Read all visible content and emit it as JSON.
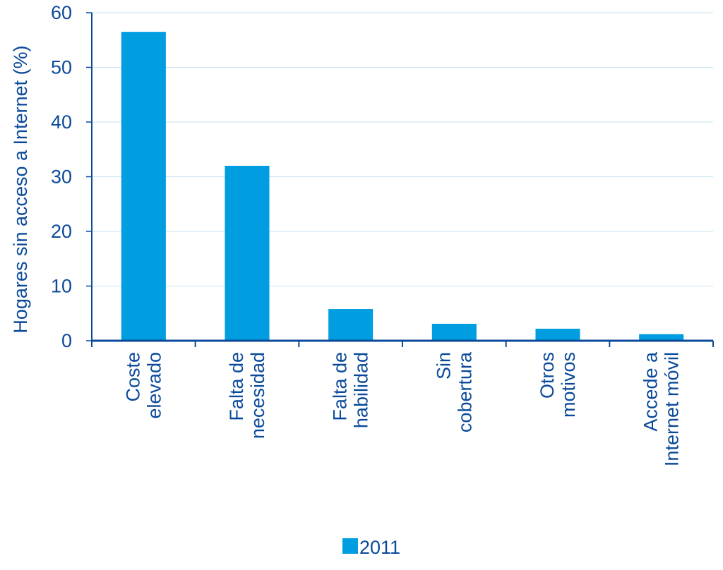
{
  "chart_data": {
    "type": "bar",
    "ylabel": "Hogares sin acceso a Internet (%)",
    "xlabel": "",
    "ylim": [
      0,
      60
    ],
    "yticks": [
      0,
      10,
      20,
      30,
      40,
      50,
      60
    ],
    "grid": true,
    "legend_position": "bottom",
    "categories": [
      [
        "Coste",
        "elevado"
      ],
      [
        "Falta de",
        "necesidad"
      ],
      [
        "Falta de",
        "habilidad"
      ],
      [
        "Sin",
        "cobertura"
      ],
      [
        "Otros",
        "motivos"
      ],
      [
        "Accede a",
        "Internet móvil"
      ]
    ],
    "series": [
      {
        "name": "2011",
        "values": [
          56.5,
          32,
          5.8,
          3.1,
          2.2,
          1.2
        ]
      }
    ]
  },
  "colors": {
    "bar": "#009ee0",
    "text": "#0b4a9a",
    "axis": "#0b4a9a",
    "grid": "#c6e4f2"
  }
}
